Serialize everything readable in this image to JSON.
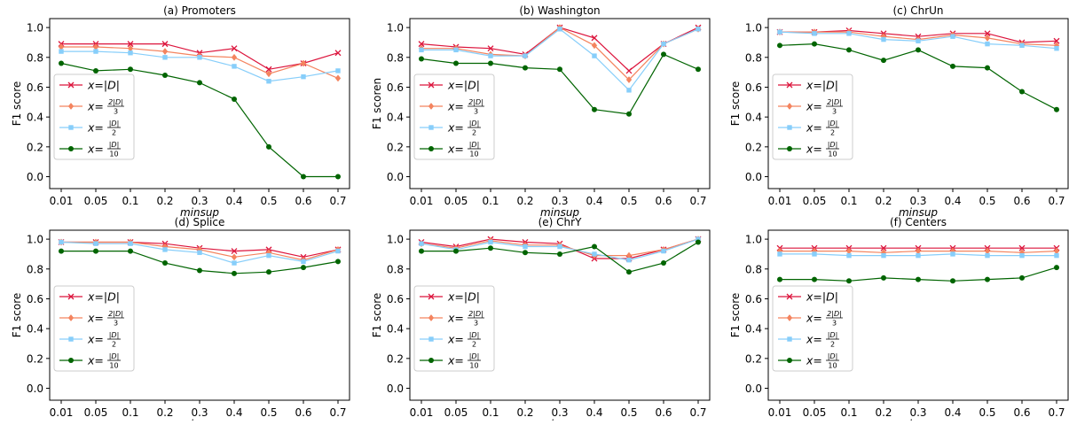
{
  "figure": {
    "xlabel": "minsup",
    "categories": [
      "0.01",
      "0.05",
      "0.1",
      "0.2",
      "0.3",
      "0.4",
      "0.5",
      "0.6",
      "0.7"
    ],
    "yticks": [
      "0.0",
      "0.2",
      "0.4",
      "0.6",
      "0.8",
      "1.0"
    ]
  },
  "legend": {
    "placement": "center-left",
    "entries": [
      {
        "key": "D",
        "color": "#dc143c",
        "marker": "x",
        "label": "x=|D|"
      },
      {
        "key": "D23",
        "color": "#f4845f",
        "marker": "diamond",
        "label": "x=2|D|/3"
      },
      {
        "key": "D2",
        "color": "#87cefa",
        "marker": "square",
        "label": "x=|D|/2"
      },
      {
        "key": "D10",
        "color": "#006400",
        "marker": "circle",
        "label": "x=|D|/10"
      }
    ]
  },
  "chart_data": [
    {
      "type": "line",
      "title": "(a) Promoters",
      "xlabel": "minsup",
      "ylabel": "F1 score",
      "ylim": [
        -0.08,
        1.06
      ],
      "grid": false,
      "categories": [
        "0.01",
        "0.05",
        "0.1",
        "0.2",
        "0.3",
        "0.4",
        "0.5",
        "0.6",
        "0.7"
      ],
      "series": [
        {
          "name": "x=|D|",
          "values": [
            0.89,
            0.89,
            0.89,
            0.89,
            0.83,
            0.86,
            0.72,
            0.76,
            0.83
          ]
        },
        {
          "name": "x=2|D|/3",
          "values": [
            0.87,
            0.87,
            0.86,
            0.84,
            0.81,
            0.8,
            0.69,
            0.76,
            0.66
          ]
        },
        {
          "name": "x=|D|/2",
          "values": [
            0.84,
            0.84,
            0.83,
            0.8,
            0.8,
            0.74,
            0.64,
            0.67,
            0.71
          ]
        },
        {
          "name": "x=|D|/10",
          "values": [
            0.76,
            0.71,
            0.72,
            0.68,
            0.63,
            0.52,
            0.2,
            0.0,
            0.0
          ]
        }
      ]
    },
    {
      "type": "line",
      "title": "(b) Washington",
      "xlabel": "minsup",
      "ylabel": "F1 scoren",
      "ylim": [
        -0.08,
        1.06
      ],
      "grid": false,
      "categories": [
        "0.01",
        "0.05",
        "0.1",
        "0.2",
        "0.3",
        "0.4",
        "0.5",
        "0.6",
        "0.7"
      ],
      "series": [
        {
          "name": "x=|D|",
          "values": [
            0.89,
            0.87,
            0.86,
            0.82,
            1.0,
            0.93,
            0.71,
            0.89,
            1.0
          ]
        },
        {
          "name": "x=2|D|/3",
          "values": [
            0.86,
            0.86,
            0.82,
            0.81,
            1.0,
            0.88,
            0.65,
            0.89,
            0.99
          ]
        },
        {
          "name": "x=|D|/2",
          "values": [
            0.85,
            0.85,
            0.81,
            0.81,
            0.99,
            0.81,
            0.58,
            0.89,
            0.99
          ]
        },
        {
          "name": "x=|D|/10",
          "values": [
            0.79,
            0.76,
            0.76,
            0.73,
            0.72,
            0.45,
            0.42,
            0.82,
            0.72
          ]
        }
      ]
    },
    {
      "type": "line",
      "title": "(c) ChrUn",
      "xlabel": "minsup",
      "ylabel": "F1 score",
      "ylim": [
        -0.08,
        1.06
      ],
      "grid": false,
      "categories": [
        "0.01",
        "0.05",
        "0.1",
        "0.2",
        "0.3",
        "0.4",
        "0.5",
        "0.6",
        "0.7"
      ],
      "series": [
        {
          "name": "x=|D|",
          "values": [
            0.97,
            0.97,
            0.98,
            0.96,
            0.94,
            0.96,
            0.96,
            0.9,
            0.91
          ]
        },
        {
          "name": "x=2|D|/3",
          "values": [
            0.97,
            0.97,
            0.97,
            0.94,
            0.92,
            0.95,
            0.93,
            0.89,
            0.88
          ]
        },
        {
          "name": "x=|D|/2",
          "values": [
            0.97,
            0.96,
            0.96,
            0.92,
            0.91,
            0.94,
            0.89,
            0.88,
            0.86
          ]
        },
        {
          "name": "x=|D|/10",
          "values": [
            0.88,
            0.89,
            0.85,
            0.78,
            0.85,
            0.74,
            0.73,
            0.57,
            0.45
          ]
        }
      ]
    },
    {
      "type": "line",
      "title": "(d) Splice",
      "xlabel": "minsup",
      "ylabel": "F1 score",
      "ylim": [
        -0.08,
        1.06
      ],
      "grid": false,
      "categories": [
        "0.01",
        "0.05",
        "0.1",
        "0.2",
        "0.3",
        "0.4",
        "0.5",
        "0.6",
        "0.7"
      ],
      "series": [
        {
          "name": "x=|D|",
          "values": [
            0.98,
            0.98,
            0.98,
            0.97,
            0.94,
            0.92,
            0.93,
            0.88,
            0.93
          ]
        },
        {
          "name": "x=2|D|/3",
          "values": [
            0.98,
            0.98,
            0.98,
            0.95,
            0.93,
            0.88,
            0.91,
            0.86,
            0.93
          ]
        },
        {
          "name": "x=|D|/2",
          "values": [
            0.98,
            0.97,
            0.97,
            0.93,
            0.91,
            0.84,
            0.89,
            0.85,
            0.92
          ]
        },
        {
          "name": "x=|D|/10",
          "values": [
            0.92,
            0.92,
            0.92,
            0.84,
            0.79,
            0.77,
            0.78,
            0.81,
            0.85
          ]
        }
      ]
    },
    {
      "type": "line",
      "title": "(e) ChrY",
      "xlabel": "minsup",
      "ylabel": "F1 score",
      "ylim": [
        -0.08,
        1.06
      ],
      "grid": false,
      "categories": [
        "0.01",
        "0.05",
        "0.1",
        "0.2",
        "0.3",
        "0.4",
        "0.5",
        "0.6",
        "0.7"
      ],
      "series": [
        {
          "name": "x=|D|",
          "values": [
            0.98,
            0.95,
            1.0,
            0.98,
            0.97,
            0.87,
            0.87,
            0.93,
            1.0
          ]
        },
        {
          "name": "x=2|D|/3",
          "values": [
            0.97,
            0.94,
            0.99,
            0.96,
            0.96,
            0.89,
            0.89,
            0.93,
            1.0
          ]
        },
        {
          "name": "x=|D|/2",
          "values": [
            0.97,
            0.93,
            0.98,
            0.95,
            0.95,
            0.9,
            0.86,
            0.92,
            1.0
          ]
        },
        {
          "name": "x=|D|/10",
          "values": [
            0.92,
            0.92,
            0.94,
            0.91,
            0.9,
            0.95,
            0.78,
            0.84,
            0.98
          ]
        }
      ]
    },
    {
      "type": "line",
      "title": "(f) Centers",
      "xlabel": "minsup",
      "ylabel": "F1 score",
      "ylim": [
        -0.08,
        1.06
      ],
      "grid": false,
      "categories": [
        "0.01",
        "0.05",
        "0.1",
        "0.2",
        "0.3",
        "0.4",
        "0.5",
        "0.6",
        "0.7"
      ],
      "series": [
        {
          "name": "x=|D|",
          "values": [
            0.94,
            0.94,
            0.94,
            0.94,
            0.94,
            0.94,
            0.94,
            0.94,
            0.94
          ]
        },
        {
          "name": "x=2|D|/3",
          "values": [
            0.92,
            0.92,
            0.92,
            0.91,
            0.92,
            0.92,
            0.92,
            0.91,
            0.92
          ]
        },
        {
          "name": "x=|D|/2",
          "values": [
            0.9,
            0.9,
            0.89,
            0.89,
            0.89,
            0.9,
            0.89,
            0.89,
            0.89
          ]
        },
        {
          "name": "x=|D|/10",
          "values": [
            0.73,
            0.73,
            0.72,
            0.74,
            0.73,
            0.72,
            0.73,
            0.74,
            0.81
          ]
        }
      ]
    }
  ]
}
